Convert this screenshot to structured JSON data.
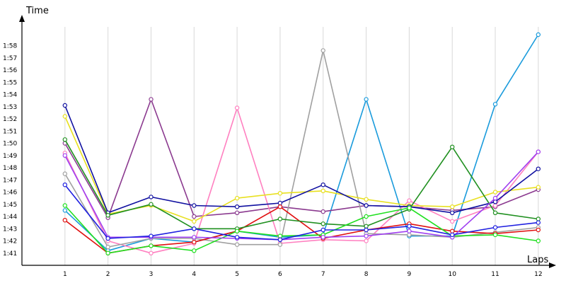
{
  "chart_data": {
    "type": "line",
    "xlabel": "Laps",
    "ylabel": "Time",
    "x": [
      1,
      2,
      3,
      4,
      5,
      6,
      7,
      8,
      9,
      10,
      11,
      12
    ],
    "xlim": [
      0,
      12.2
    ],
    "ylim_seconds": [
      100,
      120
    ],
    "ytick_labels": [
      "1:41",
      "1:42",
      "1:43",
      "1:44",
      "1:45",
      "1:46",
      "1:47",
      "1:48",
      "1:49",
      "1:50",
      "1:51",
      "1:52",
      "1:53",
      "1:54",
      "1:55",
      "1:56",
      "1:57",
      "1:58"
    ],
    "ytick_seconds": [
      101,
      102,
      103,
      104,
      105,
      106,
      107,
      108,
      109,
      110,
      111,
      112,
      113,
      114,
      115,
      116,
      117,
      118
    ],
    "grid": "vertical",
    "legend": "none",
    "series": [
      {
        "color": "#1a9bdc",
        "values": [
          104.5,
          101.2,
          102.2,
          101.9,
          102.8,
          102.3,
          102.5,
          113.6,
          102.4,
          102.4,
          113.2,
          118.9
        ]
      },
      {
        "color": "#8b3a8f",
        "values": [
          110.0,
          103.9,
          113.6,
          104.0,
          104.3,
          104.8,
          104.4,
          104.9,
          104.8,
          104.5,
          104.8,
          106.2
        ]
      },
      {
        "color": "#ff80c0",
        "values": [
          109.2,
          102.0,
          101.0,
          101.8,
          112.9,
          101.8,
          102.1,
          102.0,
          105.3,
          103.6,
          104.9,
          109.3
        ]
      },
      {
        "color": "#a0a0a0",
        "values": [
          107.5,
          101.5,
          102.2,
          102.2,
          101.7,
          101.7,
          117.6,
          102.6,
          102.5,
          102.3,
          102.7,
          103.1
        ]
      },
      {
        "color": "#e8e020",
        "values": [
          112.2,
          104.2,
          104.9,
          103.6,
          105.5,
          105.9,
          106.1,
          105.4,
          104.9,
          104.8,
          106.0,
          106.4
        ]
      },
      {
        "color": "#1010a0",
        "values": [
          113.1,
          104.3,
          105.6,
          104.9,
          104.8,
          105.1,
          106.6,
          104.9,
          104.8,
          104.3,
          105.2,
          107.9
        ]
      },
      {
        "color": "#e01010",
        "values": [
          103.7,
          101.0,
          101.6,
          101.9,
          102.8,
          104.8,
          102.2,
          102.9,
          103.4,
          102.8,
          102.6,
          102.9
        ]
      },
      {
        "color": "#209020",
        "values": [
          110.3,
          104.1,
          105.0,
          103.0,
          103.0,
          103.8,
          103.4,
          103.2,
          104.6,
          109.7,
          104.3,
          103.8
        ]
      },
      {
        "color": "#20e020",
        "values": [
          104.9,
          101.0,
          101.6,
          101.2,
          102.8,
          102.4,
          102.5,
          104.0,
          104.7,
          102.4,
          102.5,
          102.0
        ]
      },
      {
        "color": "#a040f0",
        "values": [
          109.0,
          102.3,
          102.3,
          102.3,
          102.2,
          102.1,
          102.3,
          102.4,
          102.8,
          102.3,
          105.5,
          109.3
        ]
      },
      {
        "color": "#2020e0",
        "values": [
          106.6,
          102.2,
          102.4,
          103.0,
          102.3,
          102.1,
          102.9,
          102.9,
          103.2,
          102.5,
          103.1,
          103.5
        ]
      }
    ]
  }
}
